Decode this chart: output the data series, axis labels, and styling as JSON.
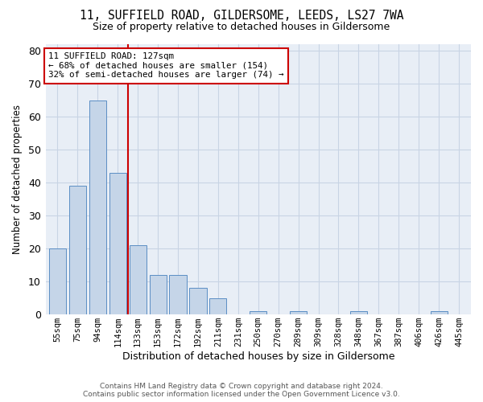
{
  "title": "11, SUFFIELD ROAD, GILDERSOME, LEEDS, LS27 7WA",
  "subtitle": "Size of property relative to detached houses in Gildersome",
  "xlabel": "Distribution of detached houses by size in Gildersome",
  "ylabel": "Number of detached properties",
  "bar_labels": [
    "55sqm",
    "75sqm",
    "94sqm",
    "114sqm",
    "133sqm",
    "153sqm",
    "172sqm",
    "192sqm",
    "211sqm",
    "231sqm",
    "250sqm",
    "270sqm",
    "289sqm",
    "309sqm",
    "328sqm",
    "348sqm",
    "367sqm",
    "387sqm",
    "406sqm",
    "426sqm",
    "445sqm"
  ],
  "bar_values": [
    20,
    39,
    65,
    43,
    21,
    12,
    12,
    8,
    5,
    0,
    1,
    0,
    1,
    0,
    0,
    1,
    0,
    0,
    0,
    1,
    0
  ],
  "bar_color": "#c5d5e8",
  "bar_edge_color": "#5b8ec4",
  "vline_color": "#cc0000",
  "annotation_line1": "11 SUFFIELD ROAD: 127sqm",
  "annotation_line2": "← 68% of detached houses are smaller (154)",
  "annotation_line3": "32% of semi-detached houses are larger (74) →",
  "annotation_box_color": "#cc0000",
  "ylim": [
    0,
    82
  ],
  "yticks": [
    0,
    10,
    20,
    30,
    40,
    50,
    60,
    70,
    80
  ],
  "grid_color": "#c8d4e4",
  "background_color": "#e8eef6",
  "footer_line1": "Contains HM Land Registry data © Crown copyright and database right 2024.",
  "footer_line2": "Contains public sector information licensed under the Open Government Licence v3.0."
}
